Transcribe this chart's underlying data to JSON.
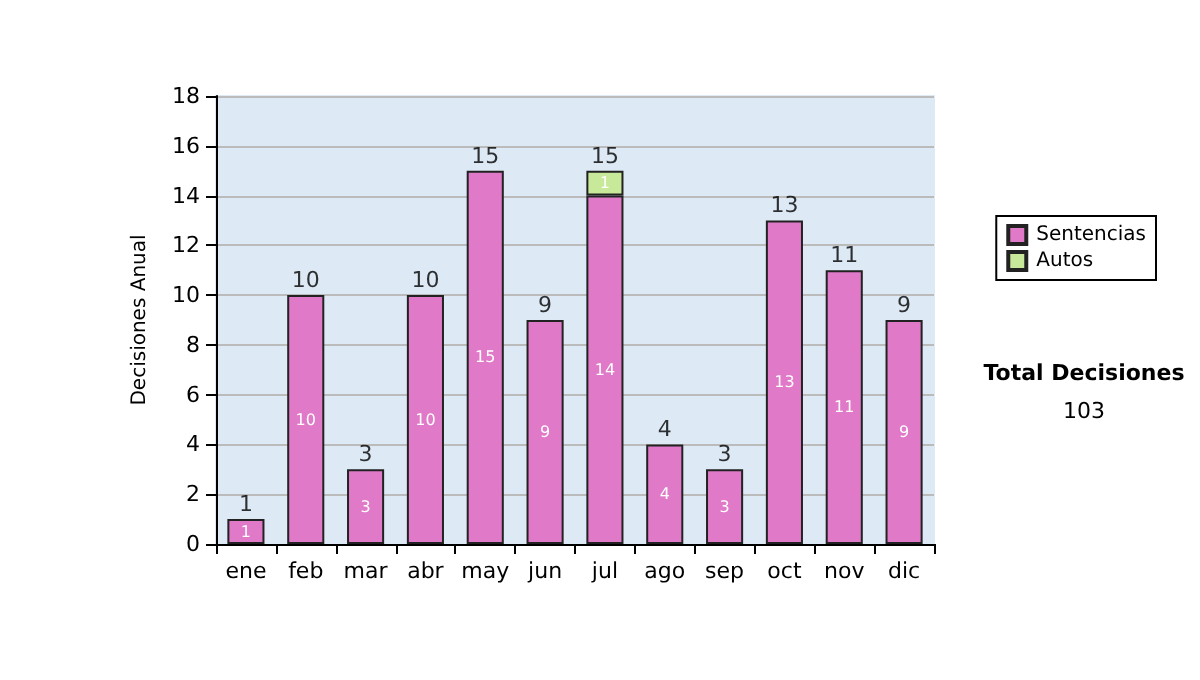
{
  "chart_data": {
    "type": "bar",
    "stacked": true,
    "ylabel": "Decisiones Anual",
    "categories": [
      "ene",
      "feb",
      "mar",
      "abr",
      "may",
      "jun",
      "jul",
      "ago",
      "sep",
      "oct",
      "nov",
      "dic"
    ],
    "series": [
      {
        "name": "Sentencias",
        "color": "#e07ac8",
        "values": [
          1,
          10,
          3,
          10,
          15,
          9,
          14,
          4,
          3,
          13,
          11,
          9
        ],
        "value_labels": [
          "1",
          "10",
          "3",
          "10",
          "15",
          "9",
          "14",
          "4",
          "3",
          "13",
          "11",
          "9"
        ]
      },
      {
        "name": "Autos",
        "color": "#c8e89a",
        "values": [
          null,
          null,
          null,
          null,
          null,
          null,
          1,
          null,
          null,
          null,
          null,
          null
        ],
        "value_labels": [
          null,
          null,
          null,
          null,
          null,
          null,
          "1",
          null,
          null,
          null,
          null,
          null
        ]
      }
    ],
    "totals": [
      "1",
      "10",
      "3",
      "10",
      "15",
      "9",
      "15",
      "4",
      "3",
      "13",
      "11",
      "9"
    ],
    "ylim": [
      0,
      18
    ],
    "yticks": [
      0,
      2,
      4,
      6,
      8,
      10,
      12,
      14,
      16,
      18
    ],
    "grid": "y",
    "legend": "right",
    "annotations": [
      "Total Decisiones",
      "103"
    ]
  }
}
